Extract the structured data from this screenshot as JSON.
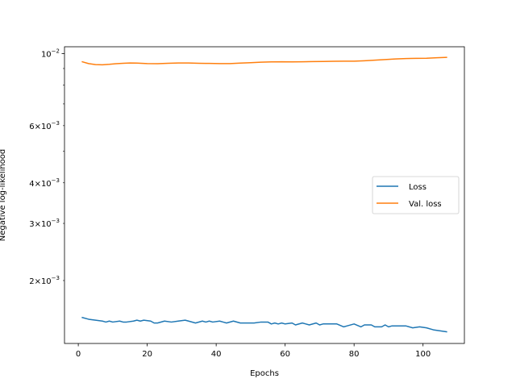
{
  "chart_data": {
    "type": "line",
    "xlabel": "Epochs",
    "ylabel": "Negative log-likelihood",
    "yscale": "log",
    "xlim": [
      -4,
      112
    ],
    "ylim": [
      0.00128,
      0.0105
    ],
    "x_ticks": [
      {
        "value": 0,
        "label": "0"
      },
      {
        "value": 20,
        "label": "20"
      },
      {
        "value": 40,
        "label": "40"
      },
      {
        "value": 60,
        "label": "60"
      },
      {
        "value": 80,
        "label": "80"
      },
      {
        "value": 100,
        "label": "100"
      }
    ],
    "y_major_ticks": [
      {
        "value": 0.01,
        "mantissa": "10",
        "exponent": "−2"
      }
    ],
    "y_minor_ticks": [
      {
        "value": 0.006,
        "mantissa": "6×10",
        "exponent": "−3"
      },
      {
        "value": 0.004,
        "mantissa": "4×10",
        "exponent": "−3"
      },
      {
        "value": 0.003,
        "mantissa": "3×10",
        "exponent": "−3"
      },
      {
        "value": 0.002,
        "mantissa": "2×10",
        "exponent": "−3"
      }
    ],
    "y_unlabeled_ticks": [
      0.005,
      0.007,
      0.008,
      0.009
    ],
    "legend": {
      "position": "center-right"
    },
    "series": [
      {
        "name": "Loss",
        "color": "#1f77b4",
        "x": [
          1,
          3,
          5,
          7,
          8,
          9,
          10,
          12,
          13,
          14,
          16,
          17,
          18,
          19,
          21,
          22,
          23,
          25,
          27,
          29,
          31,
          32,
          34,
          36,
          37,
          38,
          39,
          41,
          42,
          43,
          45,
          47,
          49,
          51,
          53,
          55,
          56,
          57,
          58,
          59,
          60,
          62,
          63,
          65,
          66,
          67,
          69,
          70,
          71,
          73,
          75,
          77,
          78,
          80,
          82,
          83,
          85,
          86,
          88,
          89,
          90,
          91,
          93,
          95,
          97,
          99,
          101,
          103,
          105,
          107
        ],
        "y": [
          0.00154,
          0.00152,
          0.00151,
          0.0015,
          0.00149,
          0.0015,
          0.00149,
          0.0015,
          0.00149,
          0.00149,
          0.0015,
          0.00151,
          0.0015,
          0.00151,
          0.0015,
          0.00148,
          0.00148,
          0.0015,
          0.00149,
          0.0015,
          0.00151,
          0.0015,
          0.00148,
          0.0015,
          0.00149,
          0.0015,
          0.00149,
          0.0015,
          0.00149,
          0.00148,
          0.0015,
          0.00148,
          0.00148,
          0.00148,
          0.00149,
          0.00149,
          0.00147,
          0.00148,
          0.00147,
          0.00148,
          0.00147,
          0.00148,
          0.00146,
          0.00148,
          0.00147,
          0.00146,
          0.00148,
          0.00146,
          0.00147,
          0.00147,
          0.00147,
          0.00144,
          0.00145,
          0.00147,
          0.00144,
          0.00146,
          0.00146,
          0.00144,
          0.00144,
          0.00146,
          0.00144,
          0.00145,
          0.00145,
          0.00145,
          0.00143,
          0.00144,
          0.00143,
          0.00141,
          0.0014,
          0.00139
        ]
      },
      {
        "name": "Val. loss",
        "color": "#ff7f0e",
        "x": [
          1,
          3,
          5,
          7,
          9,
          11,
          13,
          15,
          17,
          20,
          23,
          26,
          29,
          32,
          35,
          38,
          41,
          44,
          47,
          50,
          53,
          56,
          59,
          62,
          65,
          68,
          71,
          74,
          77,
          80,
          83,
          86,
          89,
          92,
          95,
          98,
          101,
          104,
          107
        ],
        "y": [
          0.00945,
          0.00932,
          0.00925,
          0.00924,
          0.00927,
          0.00931,
          0.00934,
          0.00936,
          0.00935,
          0.00932,
          0.00931,
          0.00934,
          0.00936,
          0.00936,
          0.00934,
          0.00933,
          0.00932,
          0.00932,
          0.00935,
          0.00938,
          0.00941,
          0.00943,
          0.00944,
          0.00943,
          0.00944,
          0.00945,
          0.00946,
          0.00947,
          0.00948,
          0.00948,
          0.00951,
          0.00955,
          0.00959,
          0.00963,
          0.00966,
          0.00967,
          0.00968,
          0.00971,
          0.00974
        ]
      }
    ]
  }
}
